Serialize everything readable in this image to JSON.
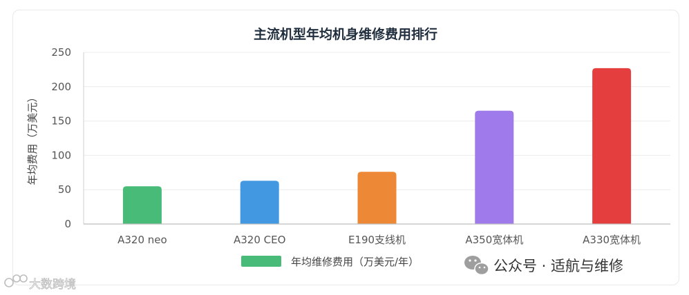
{
  "chart_data": {
    "type": "bar",
    "title": "主流机型年均机身维修费用排行",
    "categories": [
      "A320 neo",
      "A320 CEO",
      "E190支线机",
      "A350宽体机",
      "A330宽体机"
    ],
    "series": [
      {
        "name": "年均维修费用（万美元/年）",
        "values": [
          55,
          63,
          76,
          165,
          227
        ],
        "colors": [
          "#48bb78",
          "#4299e1",
          "#ed8936",
          "#9f7aea",
          "#e53e3e"
        ]
      }
    ],
    "ylabel": "年均费用（万美元）",
    "xlabel": "",
    "ylim": [
      0,
      250
    ],
    "yticks": [
      0,
      50,
      100,
      150,
      200,
      250
    ],
    "grid": true,
    "legend": "bottom"
  },
  "watermarks": {
    "right_label": "公众号 · 适航与维修",
    "right_icon": "wechat-icon",
    "left_label": "大数跨境",
    "left_icon": "ddkj-logo-icon"
  }
}
